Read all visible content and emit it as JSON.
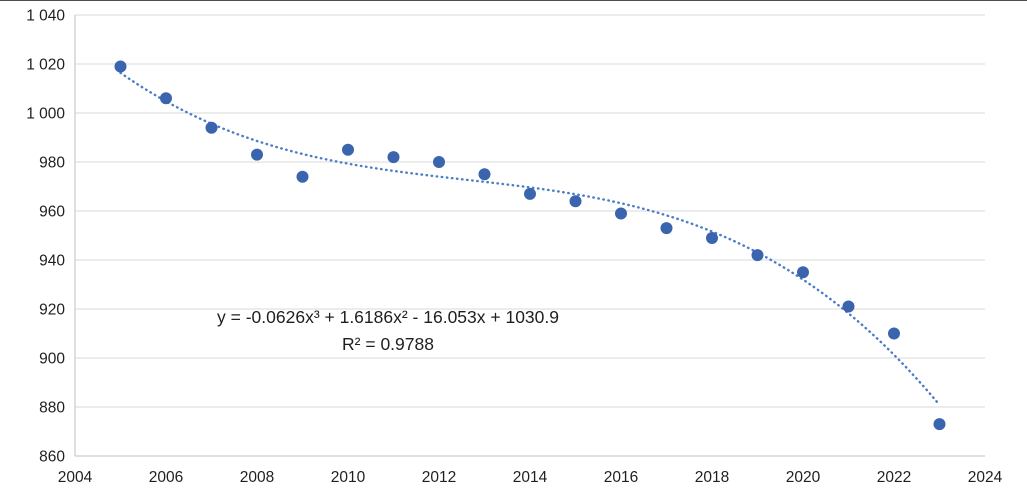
{
  "chart_data": {
    "type": "scatter",
    "title": "",
    "xlabel": "",
    "ylabel": "",
    "x": [
      2005,
      2006,
      2007,
      2008,
      2009,
      2010,
      2011,
      2012,
      2013,
      2014,
      2015,
      2016,
      2017,
      2018,
      2019,
      2020,
      2021,
      2022,
      2023
    ],
    "values": [
      1019,
      1006,
      994,
      983,
      974,
      985,
      982,
      980,
      975,
      967,
      964,
      959,
      953,
      949,
      942,
      935,
      921,
      910,
      873
    ],
    "xlim": [
      2004,
      2024
    ],
    "ylim": [
      860,
      1040
    ],
    "x_ticks": [
      2004,
      2006,
      2008,
      2010,
      2012,
      2014,
      2016,
      2018,
      2020,
      2022,
      2024
    ],
    "x_tick_labels": [
      "2004",
      "2006",
      "2008",
      "2010",
      "2012",
      "2014",
      "2016",
      "2018",
      "2020",
      "2022",
      "2024"
    ],
    "y_ticks": [
      860,
      880,
      900,
      920,
      940,
      960,
      980,
      1000,
      1020,
      1040
    ],
    "y_tick_labels": [
      "860",
      "880",
      "900",
      "920",
      "940",
      "960",
      "980",
      "1 000",
      "1 020",
      "1 040"
    ],
    "grid": true,
    "legend": "none",
    "trendline": {
      "type": "polynomial",
      "order": 3,
      "coefficients": [
        -0.0626,
        1.6186,
        -16.053,
        1030.9
      ],
      "index_origin_year": 2004,
      "equation": "y = -0.0626x³ + 1.6186x² - 16.053x + 1030.9",
      "r_squared_label": "R² = 0.9788"
    },
    "colors": {
      "point": "#3b64af",
      "trendline": "#4a7cc7",
      "gridline": "#d9d9d9",
      "axis_line": "#bfbfbf",
      "axis_text": "#1f1f1f",
      "background": "#ffffff"
    }
  }
}
